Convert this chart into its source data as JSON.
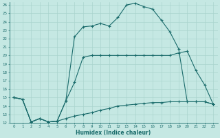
{
  "xlabel": "Humidex (Indice chaleur)",
  "bg_color": "#c5e8e3",
  "line_color": "#1a6b6b",
  "grid_color": "#aad4ce",
  "xlim": [
    0,
    23
  ],
  "ylim": [
    12,
    26
  ],
  "xticks": [
    0,
    1,
    2,
    3,
    4,
    5,
    6,
    7,
    8,
    9,
    10,
    11,
    12,
    13,
    14,
    15,
    16,
    17,
    18,
    19,
    20,
    21,
    22,
    23
  ],
  "yticks": [
    12,
    13,
    14,
    15,
    16,
    17,
    18,
    19,
    20,
    21,
    22,
    23,
    24,
    25,
    26
  ],
  "line_top_x": [
    0,
    1,
    2,
    3,
    4,
    5,
    6,
    7,
    8,
    9,
    10,
    11,
    12,
    13,
    14,
    15,
    16,
    17,
    18,
    19,
    20,
    21,
    22,
    23
  ],
  "line_top_y": [
    15,
    14.8,
    12.1,
    12.5,
    12.1,
    12.2,
    14.6,
    22.2,
    23.4,
    23.5,
    23.8,
    23.5,
    24.5,
    26.0,
    26.2,
    25.8,
    25.5,
    24.2,
    22.8,
    20.8,
    14.5,
    14.5,
    14.5,
    14.2
  ],
  "line_mid_x": [
    0,
    1,
    2,
    3,
    4,
    5,
    6,
    7,
    8,
    9,
    10,
    11,
    12,
    13,
    14,
    15,
    16,
    17,
    18,
    19,
    20,
    21,
    22,
    23
  ],
  "line_mid_y": [
    15,
    14.8,
    12.1,
    12.5,
    12.1,
    12.2,
    14.6,
    16.8,
    19.8,
    20.0,
    20.0,
    20.0,
    20.0,
    20.0,
    20.0,
    20.0,
    20.0,
    20.0,
    20.0,
    20.3,
    20.5,
    18.2,
    16.5,
    14.2
  ],
  "line_bot_x": [
    0,
    1,
    2,
    3,
    4,
    5,
    6,
    7,
    8,
    9,
    10,
    11,
    12,
    13,
    14,
    15,
    16,
    17,
    18,
    19,
    20,
    21,
    22,
    23
  ],
  "line_bot_y": [
    15,
    14.8,
    12.1,
    12.5,
    12.1,
    12.2,
    12.5,
    12.8,
    13.0,
    13.2,
    13.5,
    13.7,
    14.0,
    14.1,
    14.2,
    14.3,
    14.4,
    14.4,
    14.5,
    14.5,
    14.5,
    14.5,
    14.5,
    14.2
  ]
}
